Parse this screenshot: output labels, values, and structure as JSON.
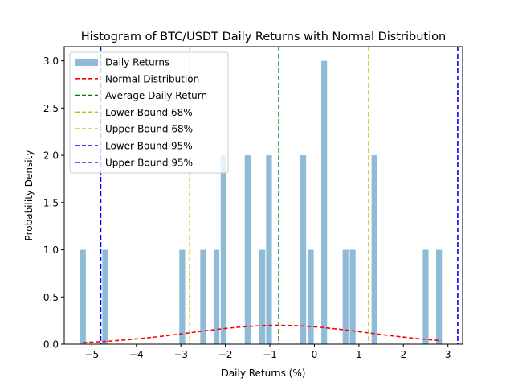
{
  "chart_data": {
    "type": "bar",
    "title": "Histogram of BTC/USDT Daily Returns with Normal Distribution",
    "xlabel": "Daily Returns (%)",
    "ylabel": "Probability Density",
    "xlim": [
      -5.62,
      3.33
    ],
    "ylim": [
      0,
      3.15
    ],
    "grid": false,
    "legend_position": "top-left",
    "x_ticks": [
      -5,
      -4,
      -3,
      -2,
      -1,
      0,
      1,
      2,
      3
    ],
    "x_tick_labels": [
      "−5",
      "−4",
      "−3",
      "−2",
      "−1",
      "0",
      "1",
      "2",
      "3"
    ],
    "y_ticks": [
      0,
      0.5,
      1,
      1.5,
      2,
      2.5,
      3
    ],
    "y_tick_labels": [
      "0.0",
      "0.5",
      "1.0",
      "1.5",
      "2.0",
      "2.5",
      "3.0"
    ],
    "histogram": {
      "name": "Daily Returns",
      "color": "#1f77b4",
      "opacity": 0.5,
      "bar_width": 0.13,
      "bars": [
        {
          "x": -5.2,
          "height": 1
        },
        {
          "x": -4.7,
          "height": 1
        },
        {
          "x": -2.97,
          "height": 1
        },
        {
          "x": -2.5,
          "height": 1
        },
        {
          "x": -2.2,
          "height": 1
        },
        {
          "x": -2.04,
          "height": 2
        },
        {
          "x": -1.5,
          "height": 2
        },
        {
          "x": -1.17,
          "height": 1
        },
        {
          "x": -1.02,
          "height": 2
        },
        {
          "x": -0.25,
          "height": 2
        },
        {
          "x": -0.08,
          "height": 1
        },
        {
          "x": 0.22,
          "height": 3
        },
        {
          "x": 0.7,
          "height": 1
        },
        {
          "x": 0.86,
          "height": 1
        },
        {
          "x": 1.35,
          "height": 2
        },
        {
          "x": 2.5,
          "height": 1
        },
        {
          "x": 2.8,
          "height": 1
        }
      ]
    },
    "normal_curve": {
      "name": "Normal Distribution",
      "color": "#ff0000",
      "style": "dashed",
      "mean": -0.8,
      "std": 2.0,
      "x_range": [
        -5.2,
        2.85
      ]
    },
    "vertical_lines": [
      {
        "name": "Average Daily Return",
        "x": -0.8,
        "color": "#008000"
      },
      {
        "name": "Lower Bound 68%",
        "x": -2.8,
        "color": "#bfbf00"
      },
      {
        "name": "Upper Bound 68%",
        "x": 1.22,
        "color": "#bfbf00"
      },
      {
        "name": "Lower Bound 95%",
        "x": -4.8,
        "color": "#0000ff"
      },
      {
        "name": "Upper Bound 95%",
        "x": 3.22,
        "color": "#0000ff"
      }
    ]
  }
}
